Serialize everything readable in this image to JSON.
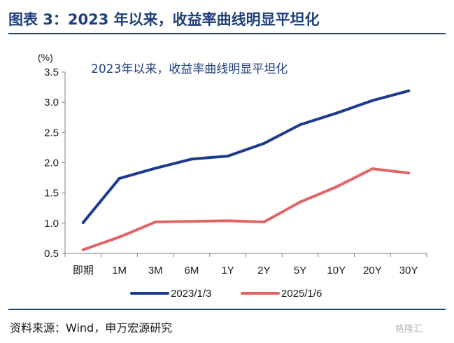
{
  "figure_title": "图表 3：2023 年以来，收益率曲线明显平坦化",
  "source": "资料来源：Wind，申万宏源研究",
  "watermark": "格隆汇",
  "chart_data": {
    "type": "line",
    "title": "2023年以来，收益率曲线明显平坦化",
    "ylabel": "(%)",
    "xlabel": "",
    "ylim": [
      0.5,
      3.5
    ],
    "yticks": [
      "0.5",
      "1.0",
      "1.5",
      "2.0",
      "2.5",
      "3.0",
      "3.5"
    ],
    "grid": false,
    "legend_position": "bottom",
    "categories": [
      "即期",
      "1M",
      "3M",
      "6M",
      "1Y",
      "2Y",
      "5Y",
      "10Y",
      "20Y",
      "30Y"
    ],
    "series": [
      {
        "name": "2023/1/3",
        "color": "#1c3b8f",
        "values": [
          1.01,
          1.74,
          1.91,
          2.06,
          2.11,
          2.32,
          2.63,
          2.82,
          3.03,
          3.19
        ]
      },
      {
        "name": "2025/1/6",
        "color": "#e06666",
        "values": [
          0.56,
          0.77,
          1.02,
          1.03,
          1.04,
          1.02,
          1.35,
          1.6,
          1.9,
          1.83
        ]
      }
    ]
  }
}
